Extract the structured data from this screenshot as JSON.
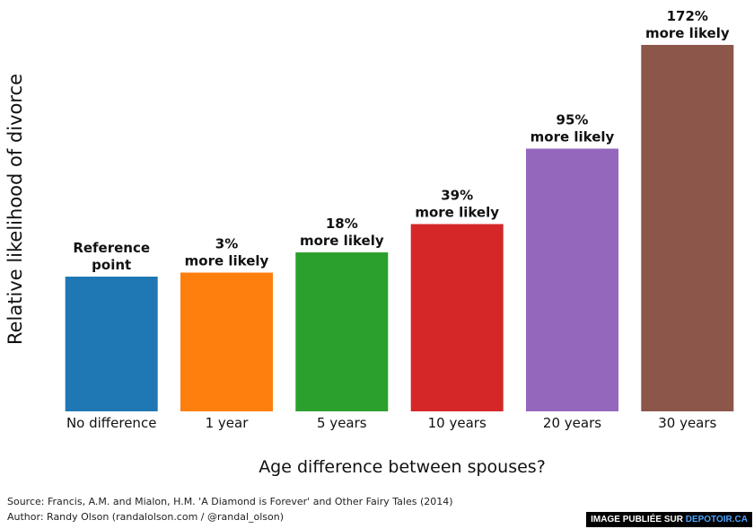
{
  "chart_data": {
    "type": "bar",
    "categories": [
      "No difference",
      "1 year",
      "5 years",
      "10 years",
      "20 years",
      "30 years"
    ],
    "values": [
      1.0,
      1.03,
      1.18,
      1.39,
      1.95,
      2.72
    ],
    "annotations": [
      [
        "Reference",
        "point"
      ],
      [
        "3%",
        "more likely"
      ],
      [
        "18%",
        "more likely"
      ],
      [
        "39%",
        "more likely"
      ],
      [
        "95%",
        "more likely"
      ],
      [
        "172%",
        "more likely"
      ]
    ],
    "colors": [
      "#1f77b4",
      "#ff7f0e",
      "#2ca02c",
      "#d62728",
      "#9467bd",
      "#8c564b"
    ],
    "title": "",
    "xlabel": "Age difference between spouses?",
    "ylabel": "Relative likelihood of divorce",
    "ylim": [
      0,
      2.8
    ],
    "grid": false,
    "legend": "none"
  },
  "footer": {
    "source": "Source: Francis, A.M. and Mialon, H.M. 'A Diamond is Forever' and Other Fairy Tales (2014)",
    "author": "Author: Randy Olson (randalolson.com / @randal_olson)"
  },
  "watermark": {
    "prefix": "IMAGE PUBLIÉE SUR ",
    "site": "DEPOTOIR.CA"
  }
}
